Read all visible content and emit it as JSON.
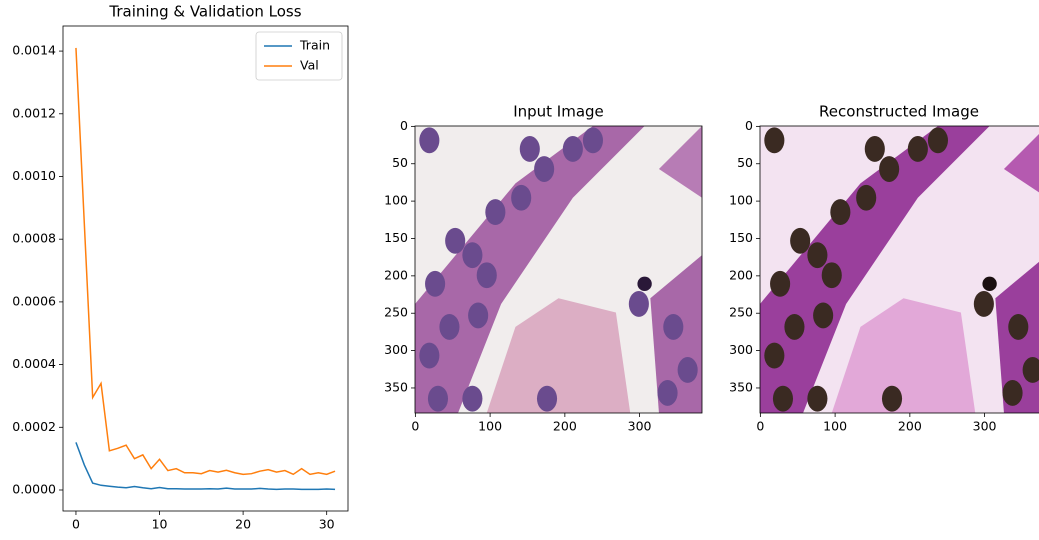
{
  "chart_data": [
    {
      "type": "line",
      "title": "Training & Validation Loss",
      "x": [
        0,
        1,
        2,
        3,
        4,
        5,
        6,
        7,
        8,
        9,
        10,
        11,
        12,
        13,
        14,
        15,
        16,
        17,
        18,
        19,
        20,
        21,
        22,
        23,
        24,
        25,
        26,
        27,
        28,
        29,
        30,
        31
      ],
      "series": [
        {
          "name": "Train",
          "color": "#1f77b4",
          "values": [
            0.000152,
            8e-05,
            2.2e-05,
            1.5e-05,
            1.2e-05,
            9e-06,
            7e-06,
            1.1e-05,
            7e-06,
            4e-06,
            8e-06,
            4e-06,
            4e-06,
            3e-06,
            3e-06,
            3e-06,
            4e-06,
            3e-06,
            6e-06,
            3e-06,
            3e-06,
            3e-06,
            5e-06,
            3e-06,
            2e-06,
            3e-06,
            3e-06,
            2e-06,
            2e-06,
            2e-06,
            3e-06,
            2e-06
          ]
        },
        {
          "name": "Val",
          "color": "#ff7f0e",
          "values": [
            0.00141,
            0.00085,
            0.000295,
            0.00034,
            0.000125,
            0.000133,
            0.000143,
            0.0001,
            0.000112,
            6.8e-05,
            9.8e-05,
            6.2e-05,
            6.8e-05,
            5.5e-05,
            5.5e-05,
            5.2e-05,
            6.2e-05,
            5.7e-05,
            6.3e-05,
            5.5e-05,
            5e-05,
            5.2e-05,
            6e-05,
            6.5e-05,
            5.7e-05,
            6.2e-05,
            5e-05,
            6.8e-05,
            5e-05,
            5.5e-05,
            5e-05,
            6e-05
          ]
        }
      ],
      "xlim": [
        -1.55,
        32.55
      ],
      "xticks": [
        0,
        10,
        20,
        30
      ],
      "ylim": [
        -6.7e-05,
        0.00148
      ],
      "yticks": [
        {
          "value": 0,
          "label": "0.0000"
        },
        {
          "value": 0.0002,
          "label": "0.0002"
        },
        {
          "value": 0.0004,
          "label": "0.0004"
        },
        {
          "value": 0.0006,
          "label": "0.0006"
        },
        {
          "value": 0.0008,
          "label": "0.0008"
        },
        {
          "value": 0.001,
          "label": "0.0010"
        },
        {
          "value": 0.0012,
          "label": "0.0012"
        },
        {
          "value": 0.0014,
          "label": "0.0014"
        }
      ],
      "legend": "upper right"
    },
    {
      "type": "image",
      "title": "Input Image",
      "xlim": [
        -0.5,
        383.5
      ],
      "ylim": [
        383.5,
        -0.5
      ],
      "xticks": [
        0,
        100,
        200,
        300
      ],
      "yticks": [
        0,
        50,
        100,
        150,
        200,
        250,
        300,
        350
      ]
    },
    {
      "type": "image",
      "title": "Reconstructed Image",
      "xlim": [
        -0.5,
        383.5
      ],
      "ylim": [
        383.5,
        -0.5
      ],
      "xticks": [
        0,
        100,
        200,
        300
      ],
      "yticks": [
        0,
        50,
        100,
        150,
        200,
        250,
        300,
        350
      ]
    }
  ]
}
